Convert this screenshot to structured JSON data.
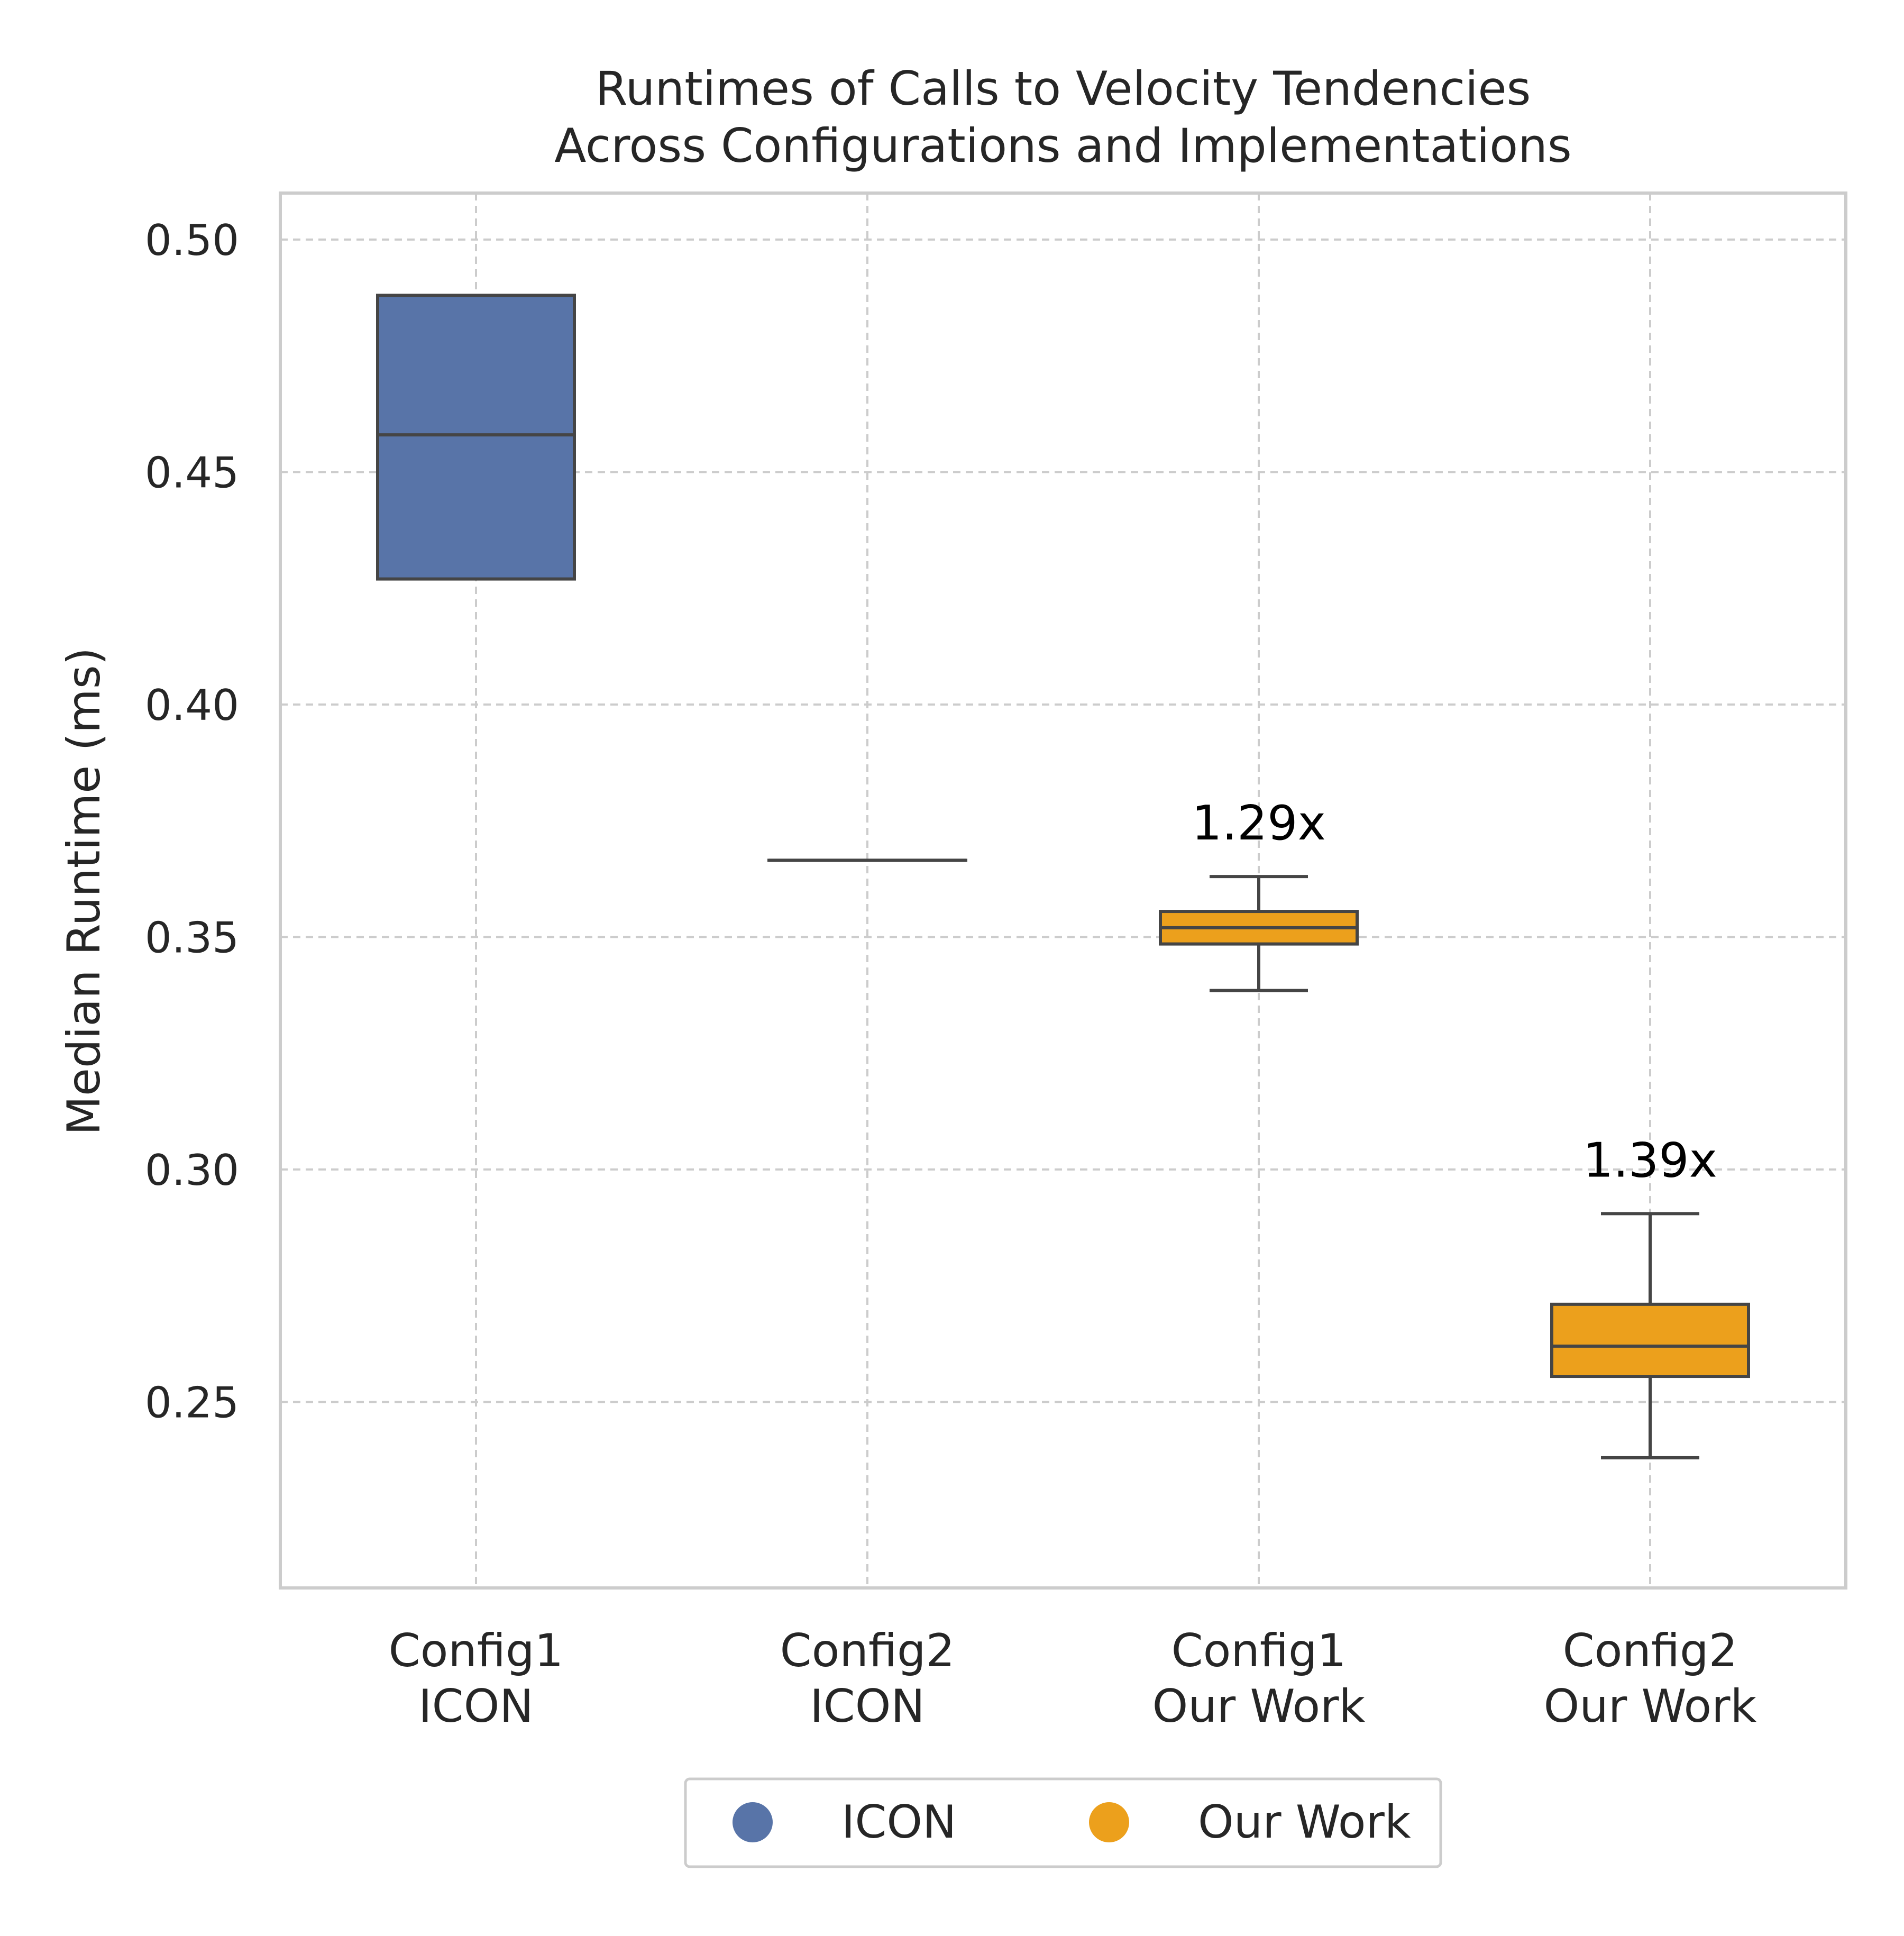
{
  "chart_data": {
    "type": "box",
    "title_lines": [
      "Runtimes of Calls to Velocity Tendencies",
      "Across Configurations and Implementations"
    ],
    "xlabel": "",
    "ylabel": "Median Runtime (ms)",
    "ylim": [
      0.21,
      0.51
    ],
    "yticks": [
      "0.25",
      "0.30",
      "0.35",
      "0.40",
      "0.45",
      "0.50"
    ],
    "grid": true,
    "legend_position": "bottom-center",
    "categories": [
      {
        "lines": [
          "Config1",
          "ICON"
        ]
      },
      {
        "lines": [
          "Config2",
          "ICON"
        ]
      },
      {
        "lines": [
          "Config1",
          "Our Work"
        ]
      },
      {
        "lines": [
          "Config2",
          "Our Work"
        ]
      }
    ],
    "boxes": [
      {
        "group": "ICON",
        "whisker_low": 0.427,
        "q1": 0.427,
        "median": 0.458,
        "q3": 0.488,
        "whisker_high": 0.488,
        "annotation": ""
      },
      {
        "group": "ICON",
        "whisker_low": 0.3665,
        "q1": 0.3665,
        "median": 0.3665,
        "q3": 0.3665,
        "whisker_high": 0.3665,
        "annotation": ""
      },
      {
        "group": "Our Work",
        "whisker_low": 0.3385,
        "q1": 0.3485,
        "median": 0.352,
        "q3": 0.3555,
        "whisker_high": 0.363,
        "annotation": "1.29x"
      },
      {
        "group": "Our Work",
        "whisker_low": 0.238,
        "q1": 0.2555,
        "median": 0.262,
        "q3": 0.271,
        "whisker_high": 0.2905,
        "annotation": "1.39x"
      }
    ],
    "legend": [
      {
        "label": "ICON",
        "color": "#5874a8"
      },
      {
        "label": "Our Work",
        "color": "#eca01c"
      }
    ]
  }
}
